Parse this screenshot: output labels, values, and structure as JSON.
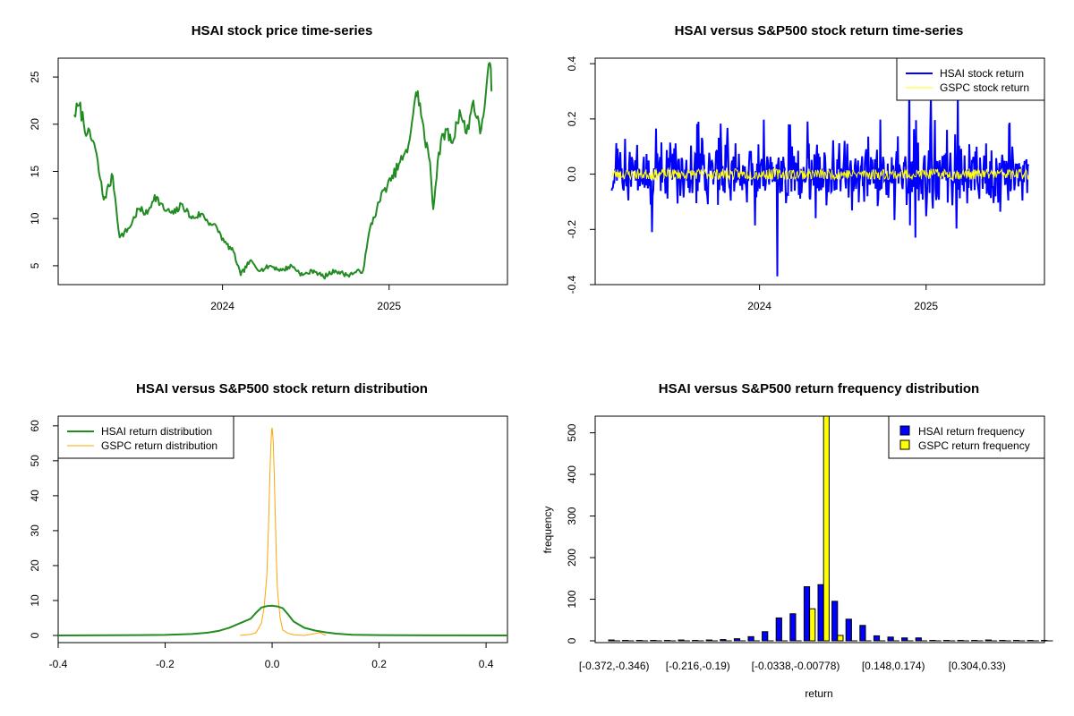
{
  "chart_data": [
    {
      "type": "line",
      "title": "HSAI stock price time-series",
      "xlabel": "",
      "ylabel": "",
      "x_ticks": [
        "2024",
        "2025"
      ],
      "y_ticks": [
        5,
        10,
        15,
        20,
        25
      ],
      "ylim": [
        3.0,
        27.0
      ],
      "series": [
        {
          "name": "HSAI stock price",
          "color": "#228B22",
          "x": [
            "2023-02-09",
            "2023-02-20",
            "2023-03-10",
            "2023-03-25",
            "2023-04-15",
            "2023-05-05",
            "2023-05-20",
            "2023-06-10",
            "2023-06-30",
            "2023-07-20",
            "2023-08-05",
            "2023-08-25",
            "2023-09-15",
            "2023-10-05",
            "2023-10-25",
            "2023-11-15",
            "2023-12-05",
            "2023-12-20",
            "2024-01-05",
            "2024-01-25",
            "2024-02-10",
            "2024-03-01",
            "2024-03-25",
            "2024-04-15",
            "2024-05-10",
            "2024-06-01",
            "2024-06-25",
            "2024-07-20",
            "2024-08-10",
            "2024-09-05",
            "2024-09-30",
            "2024-10-20",
            "2024-11-05",
            "2024-11-20",
            "2024-12-05",
            "2024-12-20",
            "2025-01-05",
            "2025-01-25",
            "2025-02-10",
            "2025-02-25",
            "2025-03-05",
            "2025-03-20",
            "2025-04-01",
            "2025-04-08",
            "2025-04-20",
            "2025-05-05",
            "2025-05-20",
            "2025-06-05",
            "2025-06-20",
            "2025-07-05",
            "2025-07-20",
            "2025-08-01",
            "2025-08-10",
            "2025-08-15"
          ],
          "values": [
            21.0,
            22.0,
            19.0,
            18.0,
            12.0,
            14.5,
            8.0,
            9.0,
            11.0,
            10.5,
            12.5,
            11.0,
            10.5,
            11.5,
            10.0,
            10.5,
            9.5,
            9.0,
            7.5,
            6.5,
            4.0,
            5.5,
            4.5,
            5.0,
            4.5,
            5.0,
            4.0,
            4.5,
            3.8,
            4.5,
            4.0,
            4.3,
            4.5,
            9.0,
            11.0,
            13.0,
            14.0,
            16.0,
            17.0,
            22.0,
            23.5,
            18.5,
            16.0,
            11.0,
            17.0,
            19.5,
            18.0,
            21.5,
            19.0,
            22.5,
            19.0,
            23.0,
            26.5,
            23.5
          ]
        }
      ]
    },
    {
      "type": "line",
      "title": "HSAI versus S&P500 stock return time-series",
      "xlabel": "",
      "ylabel": "",
      "x_ticks": [
        "2024",
        "2025"
      ],
      "y_ticks": [
        -0.4,
        -0.2,
        0.0,
        0.2,
        0.4
      ],
      "ylim": [
        -0.4,
        0.42
      ],
      "legend_position": "top-right",
      "series": [
        {
          "name": "HSAI stock return",
          "color": "#0000FF",
          "summary": {
            "min": -0.37,
            "max": 0.36,
            "typical_range": [
              -0.15,
              0.15
            ]
          }
        },
        {
          "name": "GSPC stock return",
          "color": "#FFFF00",
          "summary": {
            "min": -0.03,
            "max": 0.03
          }
        }
      ]
    },
    {
      "type": "line",
      "title": "HSAI versus S&P500 stock return distribution",
      "xlabel": "",
      "ylabel": "",
      "x_ticks": [
        "-0.4",
        "-0.2",
        "0.0",
        "0.2",
        "0.4"
      ],
      "y_ticks": [
        0,
        10,
        20,
        30,
        40,
        50,
        60
      ],
      "xlim": [
        -0.4,
        0.44
      ],
      "ylim": [
        0,
        62
      ],
      "legend_position": "top-left",
      "series": [
        {
          "name": "HSAI return distribution",
          "color": "#228B22",
          "x": [
            -0.4,
            -0.3,
            -0.25,
            -0.2,
            -0.15,
            -0.12,
            -0.1,
            -0.08,
            -0.06,
            -0.04,
            -0.03,
            -0.02,
            -0.01,
            0.0,
            0.01,
            0.02,
            0.03,
            0.04,
            0.06,
            0.08,
            0.1,
            0.12,
            0.15,
            0.2,
            0.3,
            0.44
          ],
          "values": [
            0.0,
            0.05,
            0.1,
            0.15,
            0.4,
            0.8,
            1.3,
            2.2,
            3.5,
            4.8,
            6.5,
            8.0,
            8.4,
            8.5,
            8.3,
            7.8,
            6.0,
            4.0,
            2.2,
            1.4,
            0.9,
            0.5,
            0.2,
            0.1,
            0.02,
            0.0
          ]
        },
        {
          "name": "GSPC return distribution",
          "color": "#FFA500",
          "x": [
            -0.06,
            -0.04,
            -0.03,
            -0.02,
            -0.015,
            -0.01,
            -0.007,
            -0.005,
            -0.003,
            -0.001,
            0.0,
            0.002,
            0.004,
            0.006,
            0.008,
            0.01,
            0.015,
            0.02,
            0.03,
            0.04,
            0.06,
            0.09,
            0.1
          ],
          "values": [
            0.0,
            0.3,
            0.8,
            3.5,
            8.0,
            17.0,
            30.0,
            42.0,
            52.0,
            58.5,
            59.5,
            56.0,
            46.0,
            34.0,
            22.0,
            13.0,
            5.0,
            1.5,
            0.6,
            0.2,
            0.0,
            0.8,
            0.0
          ]
        }
      ]
    },
    {
      "type": "bar",
      "title": "HSAI versus S&P500 return frequency distribution",
      "xlabel": "return",
      "ylabel": "frequency",
      "x_tick_labels": [
        "[-0.372,-0.346)",
        "[-0.216,-0.19)",
        "[-0.0338,-0.00778)",
        "[0.148,0.174)",
        "[0.304,0.33)"
      ],
      "y_ticks": [
        0,
        100,
        200,
        300,
        400,
        500
      ],
      "ylim": [
        0,
        540
      ],
      "legend_position": "top-right",
      "series": [
        {
          "name": "HSAI return frequency",
          "color": "#0000FF",
          "values": [
            2,
            1,
            1,
            1,
            1,
            2,
            1,
            2,
            3,
            5,
            10,
            22,
            55,
            65,
            130,
            135,
            95,
            52,
            37,
            12,
            9,
            7,
            7,
            1,
            1,
            1,
            1,
            2,
            1,
            1,
            1,
            1
          ]
        },
        {
          "name": "GSPC return frequency",
          "color": "#FFFF00",
          "values": [
            0,
            0,
            0,
            0,
            0,
            0,
            0,
            0,
            0,
            0,
            0,
            0,
            0,
            0,
            77,
            545,
            13,
            0,
            0,
            0,
            0,
            0,
            0,
            0,
            0,
            0,
            0,
            0,
            0,
            0,
            0,
            0
          ]
        }
      ]
    }
  ]
}
